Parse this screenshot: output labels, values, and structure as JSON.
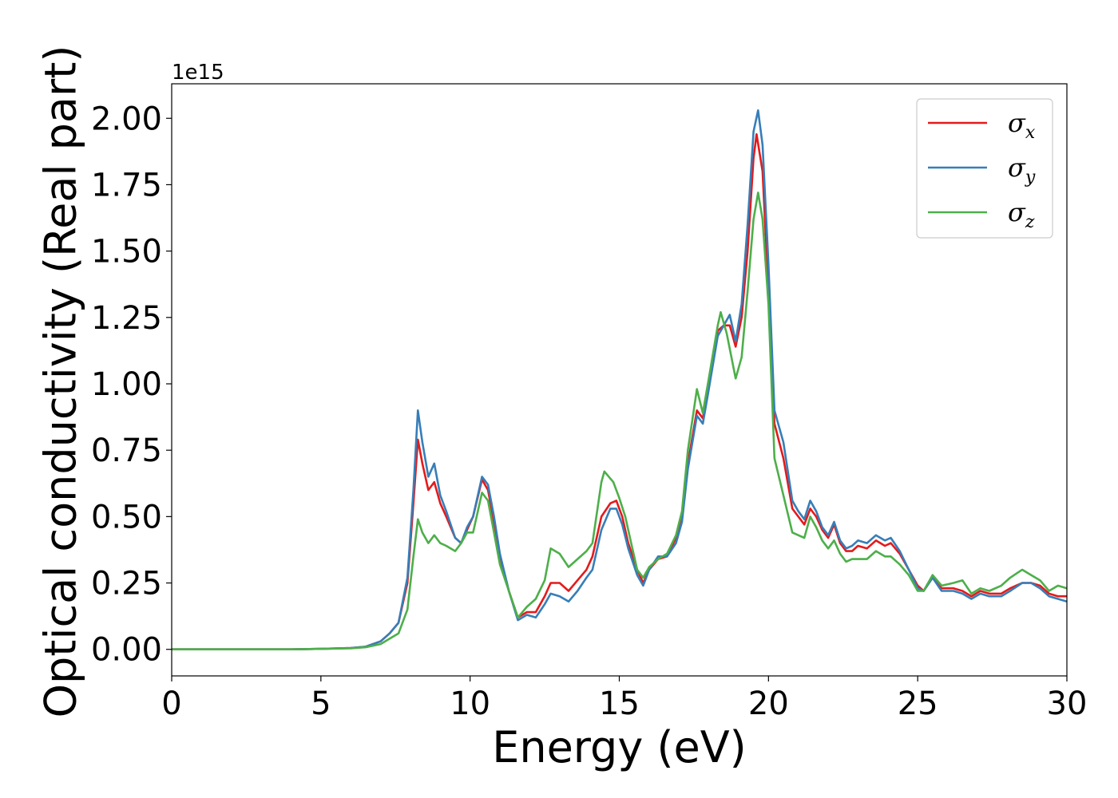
{
  "chart_data": {
    "type": "line",
    "title": "",
    "xlabel": "Energy (eV)",
    "ylabel": "Optical conductivity (Real part)",
    "y_offset_label": "1e15",
    "xlim": [
      0,
      30
    ],
    "ylim": [
      -0.1,
      2.13
    ],
    "x_ticks": [
      0,
      5,
      10,
      15,
      20,
      25,
      30
    ],
    "x_tick_labels": [
      "0",
      "5",
      "10",
      "15",
      "20",
      "25",
      "30"
    ],
    "y_ticks": [
      0.0,
      0.25,
      0.5,
      0.75,
      1.0,
      1.25,
      1.5,
      1.75,
      2.0
    ],
    "y_tick_labels": [
      "0.00",
      "0.25",
      "0.50",
      "0.75",
      "1.00",
      "1.25",
      "1.50",
      "1.75",
      "2.00"
    ],
    "grid": false,
    "legend_position": "top-right",
    "series": [
      {
        "name": "σx",
        "symbol": "σ",
        "subscript": "x",
        "color": "#e41a1c",
        "points": [
          [
            0,
            0
          ],
          [
            4,
            0
          ],
          [
            5,
            0.002
          ],
          [
            6,
            0.005
          ],
          [
            6.5,
            0.01
          ],
          [
            7,
            0.03
          ],
          [
            7.3,
            0.06
          ],
          [
            7.6,
            0.1
          ],
          [
            7.9,
            0.25
          ],
          [
            8.1,
            0.55
          ],
          [
            8.25,
            0.79
          ],
          [
            8.4,
            0.7
          ],
          [
            8.6,
            0.6
          ],
          [
            8.8,
            0.63
          ],
          [
            9,
            0.55
          ],
          [
            9.2,
            0.5
          ],
          [
            9.5,
            0.42
          ],
          [
            9.7,
            0.4
          ],
          [
            9.9,
            0.45
          ],
          [
            10.1,
            0.5
          ],
          [
            10.4,
            0.64
          ],
          [
            10.6,
            0.6
          ],
          [
            10.8,
            0.48
          ],
          [
            11,
            0.35
          ],
          [
            11.3,
            0.22
          ],
          [
            11.6,
            0.12
          ],
          [
            11.9,
            0.14
          ],
          [
            12.2,
            0.14
          ],
          [
            12.5,
            0.2
          ],
          [
            12.7,
            0.25
          ],
          [
            13,
            0.25
          ],
          [
            13.3,
            0.22
          ],
          [
            13.6,
            0.26
          ],
          [
            13.9,
            0.3
          ],
          [
            14.1,
            0.35
          ],
          [
            14.4,
            0.5
          ],
          [
            14.7,
            0.55
          ],
          [
            14.9,
            0.56
          ],
          [
            15.1,
            0.5
          ],
          [
            15.3,
            0.4
          ],
          [
            15.6,
            0.3
          ],
          [
            15.8,
            0.25
          ],
          [
            16,
            0.3
          ],
          [
            16.3,
            0.34
          ],
          [
            16.6,
            0.35
          ],
          [
            16.9,
            0.42
          ],
          [
            17.1,
            0.5
          ],
          [
            17.3,
            0.7
          ],
          [
            17.6,
            0.9
          ],
          [
            17.8,
            0.87
          ],
          [
            18,
            1.0
          ],
          [
            18.3,
            1.2
          ],
          [
            18.5,
            1.22
          ],
          [
            18.7,
            1.22
          ],
          [
            18.9,
            1.14
          ],
          [
            19.1,
            1.25
          ],
          [
            19.3,
            1.5
          ],
          [
            19.5,
            1.85
          ],
          [
            19.6,
            1.94
          ],
          [
            19.8,
            1.8
          ],
          [
            20,
            1.35
          ],
          [
            20.2,
            0.85
          ],
          [
            20.5,
            0.72
          ],
          [
            20.8,
            0.53
          ],
          [
            21,
            0.5
          ],
          [
            21.2,
            0.47
          ],
          [
            21.4,
            0.53
          ],
          [
            21.6,
            0.5
          ],
          [
            21.8,
            0.45
          ],
          [
            22,
            0.42
          ],
          [
            22.2,
            0.47
          ],
          [
            22.4,
            0.4
          ],
          [
            22.6,
            0.37
          ],
          [
            22.8,
            0.37
          ],
          [
            23,
            0.39
          ],
          [
            23.3,
            0.38
          ],
          [
            23.6,
            0.41
          ],
          [
            23.9,
            0.39
          ],
          [
            24.1,
            0.4
          ],
          [
            24.4,
            0.36
          ],
          [
            24.7,
            0.3
          ],
          [
            25,
            0.24
          ],
          [
            25.2,
            0.22
          ],
          [
            25.5,
            0.27
          ],
          [
            25.8,
            0.23
          ],
          [
            26.2,
            0.23
          ],
          [
            26.5,
            0.22
          ],
          [
            26.8,
            0.2
          ],
          [
            27.1,
            0.22
          ],
          [
            27.4,
            0.21
          ],
          [
            27.8,
            0.21
          ],
          [
            28.1,
            0.23
          ],
          [
            28.5,
            0.25
          ],
          [
            28.8,
            0.25
          ],
          [
            29.1,
            0.24
          ],
          [
            29.4,
            0.21
          ],
          [
            29.7,
            0.2
          ],
          [
            30,
            0.2
          ]
        ]
      },
      {
        "name": "σy",
        "symbol": "σ",
        "subscript": "y",
        "color": "#377eb8",
        "points": [
          [
            0,
            0
          ],
          [
            4,
            0
          ],
          [
            5,
            0.002
          ],
          [
            6,
            0.005
          ],
          [
            6.5,
            0.01
          ],
          [
            7,
            0.03
          ],
          [
            7.3,
            0.06
          ],
          [
            7.6,
            0.1
          ],
          [
            7.9,
            0.27
          ],
          [
            8.1,
            0.6
          ],
          [
            8.25,
            0.9
          ],
          [
            8.4,
            0.78
          ],
          [
            8.6,
            0.65
          ],
          [
            8.8,
            0.7
          ],
          [
            9,
            0.58
          ],
          [
            9.2,
            0.52
          ],
          [
            9.5,
            0.42
          ],
          [
            9.7,
            0.4
          ],
          [
            9.9,
            0.46
          ],
          [
            10.1,
            0.5
          ],
          [
            10.4,
            0.65
          ],
          [
            10.6,
            0.62
          ],
          [
            10.8,
            0.5
          ],
          [
            11,
            0.36
          ],
          [
            11.3,
            0.22
          ],
          [
            11.6,
            0.11
          ],
          [
            11.9,
            0.13
          ],
          [
            12.2,
            0.12
          ],
          [
            12.5,
            0.17
          ],
          [
            12.7,
            0.21
          ],
          [
            13,
            0.2
          ],
          [
            13.3,
            0.18
          ],
          [
            13.6,
            0.22
          ],
          [
            13.9,
            0.27
          ],
          [
            14.1,
            0.3
          ],
          [
            14.4,
            0.45
          ],
          [
            14.7,
            0.53
          ],
          [
            14.9,
            0.53
          ],
          [
            15.1,
            0.47
          ],
          [
            15.3,
            0.38
          ],
          [
            15.6,
            0.28
          ],
          [
            15.8,
            0.24
          ],
          [
            16,
            0.3
          ],
          [
            16.3,
            0.35
          ],
          [
            16.6,
            0.35
          ],
          [
            16.9,
            0.4
          ],
          [
            17.1,
            0.48
          ],
          [
            17.3,
            0.68
          ],
          [
            17.6,
            0.88
          ],
          [
            17.8,
            0.85
          ],
          [
            18,
            0.98
          ],
          [
            18.3,
            1.18
          ],
          [
            18.5,
            1.22
          ],
          [
            18.7,
            1.26
          ],
          [
            18.9,
            1.16
          ],
          [
            19.1,
            1.3
          ],
          [
            19.3,
            1.6
          ],
          [
            19.5,
            1.95
          ],
          [
            19.65,
            2.03
          ],
          [
            19.8,
            1.9
          ],
          [
            20,
            1.45
          ],
          [
            20.2,
            0.9
          ],
          [
            20.5,
            0.78
          ],
          [
            20.8,
            0.56
          ],
          [
            21,
            0.52
          ],
          [
            21.2,
            0.49
          ],
          [
            21.4,
            0.56
          ],
          [
            21.6,
            0.52
          ],
          [
            21.8,
            0.46
          ],
          [
            22,
            0.43
          ],
          [
            22.2,
            0.48
          ],
          [
            22.4,
            0.41
          ],
          [
            22.6,
            0.38
          ],
          [
            22.8,
            0.39
          ],
          [
            23,
            0.41
          ],
          [
            23.3,
            0.4
          ],
          [
            23.6,
            0.43
          ],
          [
            23.9,
            0.41
          ],
          [
            24.1,
            0.42
          ],
          [
            24.4,
            0.37
          ],
          [
            24.7,
            0.3
          ],
          [
            25,
            0.23
          ],
          [
            25.2,
            0.22
          ],
          [
            25.5,
            0.27
          ],
          [
            25.8,
            0.22
          ],
          [
            26.2,
            0.22
          ],
          [
            26.5,
            0.21
          ],
          [
            26.8,
            0.19
          ],
          [
            27.1,
            0.21
          ],
          [
            27.4,
            0.2
          ],
          [
            27.8,
            0.2
          ],
          [
            28.1,
            0.22
          ],
          [
            28.5,
            0.25
          ],
          [
            28.8,
            0.25
          ],
          [
            29.1,
            0.23
          ],
          [
            29.4,
            0.2
          ],
          [
            29.7,
            0.19
          ],
          [
            30,
            0.18
          ]
        ]
      },
      {
        "name": "σz",
        "symbol": "σ",
        "subscript": "z",
        "color": "#4daf4a",
        "points": [
          [
            0,
            0
          ],
          [
            4,
            0
          ],
          [
            5,
            0.002
          ],
          [
            6,
            0.004
          ],
          [
            6.5,
            0.008
          ],
          [
            7,
            0.02
          ],
          [
            7.3,
            0.04
          ],
          [
            7.6,
            0.06
          ],
          [
            7.9,
            0.15
          ],
          [
            8.1,
            0.35
          ],
          [
            8.25,
            0.49
          ],
          [
            8.4,
            0.44
          ],
          [
            8.6,
            0.4
          ],
          [
            8.8,
            0.43
          ],
          [
            9,
            0.4
          ],
          [
            9.2,
            0.39
          ],
          [
            9.5,
            0.37
          ],
          [
            9.7,
            0.4
          ],
          [
            9.9,
            0.44
          ],
          [
            10.1,
            0.44
          ],
          [
            10.4,
            0.59
          ],
          [
            10.6,
            0.56
          ],
          [
            10.8,
            0.44
          ],
          [
            11,
            0.32
          ],
          [
            11.3,
            0.22
          ],
          [
            11.6,
            0.12
          ],
          [
            11.9,
            0.16
          ],
          [
            12.2,
            0.19
          ],
          [
            12.5,
            0.26
          ],
          [
            12.7,
            0.38
          ],
          [
            13,
            0.36
          ],
          [
            13.3,
            0.31
          ],
          [
            13.6,
            0.34
          ],
          [
            13.9,
            0.37
          ],
          [
            14.1,
            0.4
          ],
          [
            14.4,
            0.63
          ],
          [
            14.5,
            0.67
          ],
          [
            14.8,
            0.63
          ],
          [
            15,
            0.57
          ],
          [
            15.2,
            0.5
          ],
          [
            15.4,
            0.4
          ],
          [
            15.6,
            0.3
          ],
          [
            15.8,
            0.27
          ],
          [
            16,
            0.31
          ],
          [
            16.3,
            0.34
          ],
          [
            16.6,
            0.36
          ],
          [
            16.9,
            0.43
          ],
          [
            17.1,
            0.52
          ],
          [
            17.3,
            0.75
          ],
          [
            17.6,
            0.98
          ],
          [
            17.8,
            0.89
          ],
          [
            18,
            1.02
          ],
          [
            18.3,
            1.22
          ],
          [
            18.4,
            1.27
          ],
          [
            18.6,
            1.19
          ],
          [
            18.9,
            1.02
          ],
          [
            19.1,
            1.1
          ],
          [
            19.3,
            1.35
          ],
          [
            19.5,
            1.62
          ],
          [
            19.65,
            1.72
          ],
          [
            19.8,
            1.62
          ],
          [
            20,
            1.3
          ],
          [
            20.2,
            0.72
          ],
          [
            20.5,
            0.58
          ],
          [
            20.8,
            0.44
          ],
          [
            21,
            0.43
          ],
          [
            21.2,
            0.42
          ],
          [
            21.4,
            0.5
          ],
          [
            21.6,
            0.46
          ],
          [
            21.8,
            0.41
          ],
          [
            22,
            0.38
          ],
          [
            22.2,
            0.41
          ],
          [
            22.4,
            0.36
          ],
          [
            22.6,
            0.33
          ],
          [
            22.8,
            0.34
          ],
          [
            23,
            0.34
          ],
          [
            23.3,
            0.34
          ],
          [
            23.6,
            0.37
          ],
          [
            23.9,
            0.35
          ],
          [
            24.1,
            0.35
          ],
          [
            24.4,
            0.32
          ],
          [
            24.7,
            0.28
          ],
          [
            25,
            0.22
          ],
          [
            25.2,
            0.22
          ],
          [
            25.5,
            0.28
          ],
          [
            25.8,
            0.24
          ],
          [
            26.2,
            0.25
          ],
          [
            26.5,
            0.26
          ],
          [
            26.8,
            0.21
          ],
          [
            27.1,
            0.23
          ],
          [
            27.4,
            0.22
          ],
          [
            27.8,
            0.24
          ],
          [
            28.1,
            0.27
          ],
          [
            28.5,
            0.3
          ],
          [
            28.8,
            0.28
          ],
          [
            29.1,
            0.26
          ],
          [
            29.4,
            0.22
          ],
          [
            29.7,
            0.24
          ],
          [
            30,
            0.23
          ]
        ]
      }
    ]
  }
}
